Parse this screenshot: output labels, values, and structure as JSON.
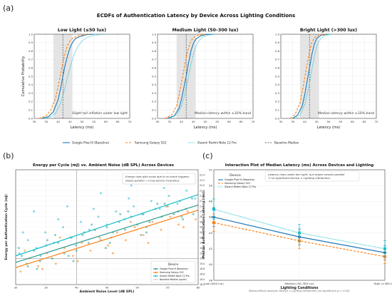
{
  "panel_labels": {
    "a": "(a)",
    "b": "(b)",
    "c": "(c)"
  },
  "colors": {
    "pixel": "#1f77b4",
    "samsung": "#ff7f0e",
    "xiaomi": "#17becf",
    "baseline": "#555555",
    "pixel_dots": "#2a9d8f",
    "band": "#d9d9d9"
  },
  "chart_data": [
    {
      "id": "a",
      "type": "line",
      "title": "ECDFs of Authentication Latency by Device Across Lighting Conditions",
      "xlabel": "Latency (ms)",
      "ylabel": "Cumulative Probability",
      "xlim": [
        30,
        70
      ],
      "ylim": [
        0,
        1
      ],
      "xticks": [
        30,
        35,
        40,
        45,
        50,
        55,
        60,
        65,
        70
      ],
      "yticks": [
        0.0,
        0.1,
        0.2,
        0.3,
        0.4,
        0.5,
        0.6,
        0.7,
        0.8,
        0.9,
        1.0
      ],
      "grid": true,
      "legend_placement": "bottom",
      "legend": [
        "Google Pixel 6 (Baseline)",
        "Samsung Galaxy S22",
        "Xiaomi Redmi Note 12 Pro",
        "Baseline Median"
      ],
      "panels": [
        {
          "title": "Low Light (≤50 lux)",
          "annotation": "Slight tail inflation under low light",
          "baseline_median": 42,
          "band": [
            38,
            46
          ],
          "series": [
            {
              "name": "Google Pixel 6 (Baseline)",
              "x": [
                33,
                36,
                38,
                40,
                41,
                42,
                43,
                44,
                45,
                46,
                47,
                48,
                50,
                52,
                55
              ],
              "y": [
                0.0,
                0.02,
                0.08,
                0.22,
                0.35,
                0.5,
                0.64,
                0.75,
                0.84,
                0.9,
                0.94,
                0.96,
                0.98,
                0.995,
                1.0
              ]
            },
            {
              "name": "Samsung Galaxy S22",
              "x": [
                32,
                35,
                37,
                39,
                40,
                41,
                42,
                43,
                44,
                45,
                46,
                48,
                50,
                53
              ],
              "y": [
                0.0,
                0.03,
                0.1,
                0.25,
                0.38,
                0.52,
                0.66,
                0.78,
                0.87,
                0.92,
                0.95,
                0.98,
                0.99,
                1.0
              ]
            },
            {
              "name": "Xiaomi Redmi Note 12 Pro",
              "x": [
                34,
                37,
                39,
                41,
                42,
                43,
                44,
                45,
                46,
                47,
                48,
                50,
                52,
                54,
                57,
                60
              ],
              "y": [
                0.0,
                0.02,
                0.06,
                0.18,
                0.27,
                0.38,
                0.5,
                0.6,
                0.7,
                0.78,
                0.84,
                0.92,
                0.96,
                0.98,
                0.995,
                1.0
              ]
            }
          ]
        },
        {
          "title": "Medium Light (50–300 lux)",
          "annotation": "Median latency within ±10% band",
          "baseline_median": 42,
          "band": [
            38,
            46
          ],
          "series": [
            {
              "name": "Google Pixel 6 (Baseline)",
              "x": [
                34,
                37,
                39,
                40,
                41,
                42,
                43,
                44,
                45,
                46,
                48,
                50,
                53
              ],
              "y": [
                0.0,
                0.03,
                0.12,
                0.22,
                0.36,
                0.5,
                0.66,
                0.8,
                0.89,
                0.94,
                0.98,
                0.995,
                1.0
              ]
            },
            {
              "name": "Samsung Galaxy S22",
              "x": [
                33,
                36,
                38,
                39,
                40,
                41,
                42,
                43,
                44,
                45,
                47,
                50
              ],
              "y": [
                0.0,
                0.04,
                0.15,
                0.27,
                0.42,
                0.57,
                0.72,
                0.84,
                0.92,
                0.96,
                0.99,
                1.0
              ]
            },
            {
              "name": "Xiaomi Redmi Note 12 Pro",
              "x": [
                35,
                38,
                40,
                41,
                42,
                43,
                44,
                45,
                46,
                47,
                49,
                51,
                54
              ],
              "y": [
                0.0,
                0.04,
                0.14,
                0.24,
                0.36,
                0.5,
                0.64,
                0.76,
                0.85,
                0.91,
                0.97,
                0.99,
                1.0
              ]
            }
          ]
        },
        {
          "title": "Bright Light (>300 lux)",
          "annotation": "Median latency within ±10% band",
          "baseline_median": 42,
          "band": [
            38,
            46
          ],
          "series": [
            {
              "name": "Google Pixel 6 (Baseline)",
              "x": [
                35,
                37,
                39,
                40,
                41,
                42,
                43,
                44,
                45,
                47,
                50
              ],
              "y": [
                0.0,
                0.04,
                0.15,
                0.28,
                0.44,
                0.6,
                0.76,
                0.88,
                0.95,
                0.99,
                1.0
              ]
            },
            {
              "name": "Samsung Galaxy S22",
              "x": [
                34,
                36,
                38,
                39,
                40,
                41,
                42,
                43,
                44,
                46,
                49
              ],
              "y": [
                0.0,
                0.05,
                0.18,
                0.32,
                0.48,
                0.64,
                0.79,
                0.9,
                0.96,
                0.99,
                1.0
              ]
            },
            {
              "name": "Xiaomi Redmi Note 12 Pro",
              "x": [
                36,
                38,
                40,
                41,
                42,
                43,
                44,
                45,
                46,
                48,
                51
              ],
              "y": [
                0.0,
                0.04,
                0.16,
                0.28,
                0.42,
                0.58,
                0.73,
                0.85,
                0.92,
                0.98,
                1.0
              ]
            }
          ]
        }
      ]
    },
    {
      "id": "b",
      "type": "scatter",
      "title": "Energy per Cycle (mJ) vs. Ambient Noise (dB SPL) Across Devices",
      "xlabel": "Ambient Noise Level (dB SPL)",
      "ylabel": "Energy per Authentication Cycle (mJ)",
      "xlim": [
        30,
        60
      ],
      "ylim": [
        18.2,
        22.6
      ],
      "xticks": [
        30,
        35,
        40,
        45,
        50,
        55,
        60
      ],
      "yticks": [
        18.2,
        18.4,
        18.6,
        18.8,
        19.0,
        19.2,
        19.4,
        19.6,
        19.8,
        20.0,
        20.2,
        20.4,
        20.6,
        20.8,
        21.0,
        21.2,
        21.4,
        21.6,
        21.8,
        22.0,
        22.2,
        22.4
      ],
      "grid": true,
      "annotation": "Energy rises with noise due to re-check triggers;\nslopes parallel → cross-device invariance.",
      "legend_title": "Device",
      "legend_placement": "lower-right",
      "legend": [
        "Google Pixel 6 (Baseline)",
        "Samsung Galaxy S22",
        "Xiaomi Redmi Note 12 Pro",
        "Baseline Median (quiet)"
      ],
      "vline_x": 40,
      "hline_y": 19.2,
      "lines": [
        {
          "name": "Google Pixel 6 (Baseline)",
          "x": [
            30,
            60
          ],
          "y": [
            19.05,
            21.25
          ]
        },
        {
          "name": "Samsung Galaxy S22",
          "x": [
            30,
            60
          ],
          "y": [
            18.85,
            21.05
          ]
        },
        {
          "name": "Xiaomi Redmi Note 12 Pro",
          "x": [
            30,
            60
          ],
          "y": [
            19.3,
            21.65
          ]
        }
      ],
      "series": [
        {
          "name": "Google Pixel 6 (Baseline)",
          "x": [
            31,
            32,
            33,
            34,
            35,
            36,
            37,
            38,
            39,
            40,
            41,
            42,
            43,
            44,
            45,
            46,
            47,
            48,
            49,
            50,
            51,
            52,
            53,
            54,
            55,
            56,
            57,
            58,
            59,
            30.5,
            33.5,
            36.5,
            39.5,
            42.5,
            45.5,
            48.5,
            51.5,
            54.5,
            57.5,
            31.8,
            35.2,
            38.7,
            41.3,
            44.8,
            47.2,
            50.6,
            53.3,
            56.7,
            59.2
          ],
          "y": [
            19.3,
            18.9,
            19.5,
            19.1,
            19.7,
            19.2,
            19.8,
            19.4,
            20.0,
            19.5,
            20.1,
            19.8,
            20.3,
            19.9,
            20.4,
            20.2,
            20.6,
            20.3,
            20.8,
            20.5,
            20.9,
            20.6,
            21.1,
            20.8,
            21.2,
            20.9,
            21.4,
            21.1,
            21.5,
            19.6,
            18.8,
            20.1,
            19.1,
            20.5,
            19.8,
            21.0,
            20.2,
            21.3,
            20.7,
            19.0,
            19.9,
            19.3,
            20.2,
            19.6,
            20.9,
            20.1,
            21.3,
            21.0,
            20.9
          ]
        },
        {
          "name": "Samsung Galaxy S22",
          "x": [
            30.8,
            32.2,
            33.7,
            35.1,
            36.6,
            38.0,
            39.4,
            40.9,
            42.3,
            43.8,
            45.2,
            46.7,
            48.1,
            49.6,
            51.0,
            52.5,
            53.9,
            55.4,
            56.8,
            58.3,
            59.6,
            31.5,
            34.4,
            37.3,
            40.2,
            43.1,
            46.0,
            48.9,
            51.8,
            54.7,
            57.6
          ],
          "y": [
            18.7,
            19.2,
            18.9,
            19.4,
            19.0,
            19.6,
            19.3,
            19.8,
            19.5,
            20.0,
            19.7,
            20.2,
            19.9,
            20.4,
            20.1,
            20.6,
            20.3,
            20.8,
            20.5,
            21.0,
            20.7,
            19.5,
            18.8,
            20.0,
            19.1,
            20.3,
            19.4,
            20.6,
            19.8,
            21.2,
            20.4
          ]
        },
        {
          "name": "Xiaomi Redmi Note 12 Pro",
          "x": [
            30.6,
            32.0,
            33.4,
            34.9,
            36.3,
            37.8,
            39.2,
            40.7,
            42.1,
            43.6,
            45.0,
            46.5,
            47.9,
            49.4,
            50.8,
            52.3,
            53.7,
            55.2,
            56.6,
            58.1,
            59.5,
            31.2,
            34.1,
            37.0,
            39.9,
            42.8,
            45.7,
            48.6,
            51.5,
            54.4,
            57.3,
            33.0,
            38.5,
            44.0,
            49.0,
            55.8
          ],
          "y": [
            19.4,
            19.9,
            19.6,
            20.2,
            19.8,
            20.4,
            20.0,
            20.6,
            20.3,
            20.8,
            20.5,
            21.0,
            20.7,
            21.2,
            20.9,
            21.4,
            21.1,
            21.6,
            21.3,
            21.8,
            21.5,
            20.2,
            19.3,
            20.7,
            19.7,
            21.1,
            20.0,
            21.5,
            20.4,
            21.9,
            20.8,
            21.0,
            21.2,
            21.7,
            22.0,
            22.2
          ]
        }
      ]
    },
    {
      "id": "c",
      "type": "line",
      "title": "Interaction Plot of Median Latency (ms) Across Devices and Lighting",
      "xlabel": "Lighting Conditions",
      "ylabel": "Median Authentication Latency (ms)",
      "categories": [
        "Low (≤50 lux)",
        "Medium (50–300 lux)",
        "High (>300 lux)"
      ],
      "ylim": [
        38,
        52
      ],
      "yticks": [
        38,
        40,
        42,
        44,
        46,
        48,
        50,
        52
      ],
      "grid": true,
      "annotation": "Latency rises under dim light, but slopes remain parallel\n→ no significant Device × Lighting interaction.",
      "legend_title": "Device",
      "legend_placement": "top-left",
      "legend": [
        "Google Pixel 6 (Baseline)",
        "Samsung Galaxy S22",
        "Xiaomi Redmi Note 12 Pro"
      ],
      "footnote": "Mixed-effects analysis: Device × Lighting interaction not significant (p > 0.05)",
      "series": [
        {
          "name": "Google Pixel 6 (Baseline)",
          "values": [
            46.0,
            43.5,
            41.5
          ],
          "err": [
            1.2,
            1.0,
            0.9
          ]
        },
        {
          "name": "Samsung Galaxy S22",
          "values": [
            45.3,
            43.0,
            41.0
          ],
          "err": [
            1.1,
            1.0,
            0.9
          ]
        },
        {
          "name": "Xiaomi Redmi Note 12 Pro",
          "values": [
            47.0,
            44.0,
            42.0
          ],
          "err": [
            1.3,
            1.1,
            1.0
          ]
        }
      ]
    }
  ]
}
